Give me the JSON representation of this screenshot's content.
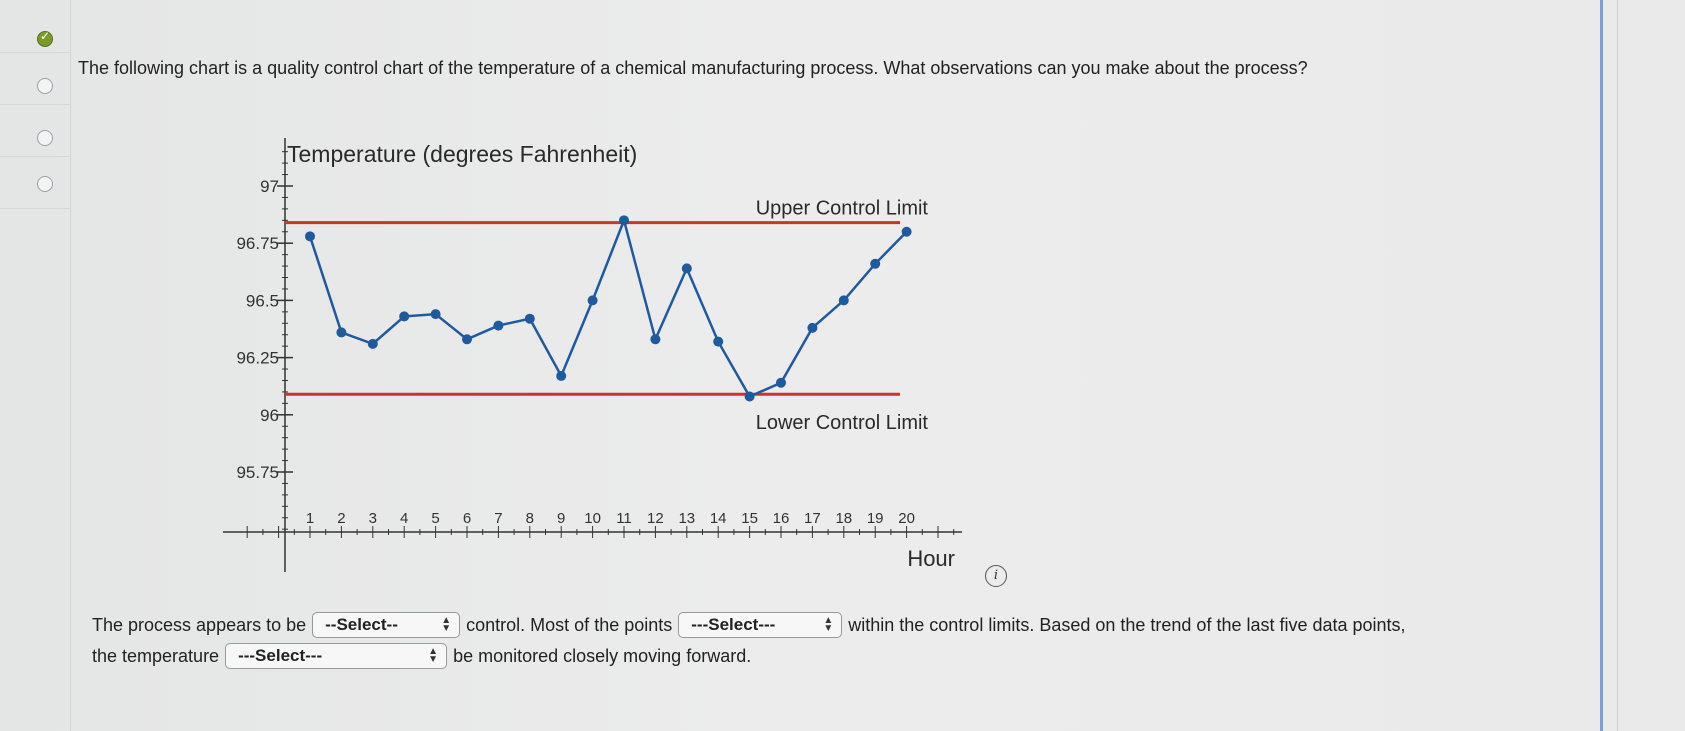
{
  "question": {
    "text": "The following chart is a quality control chart of the temperature of a chemical manufacturing process. What observations can you make about the process?"
  },
  "answer": {
    "line1_a": "The process appears to be",
    "select1": "--Select--",
    "line1_b": "control. Most of the points",
    "select2": "---Select---",
    "line1_c": "within the control limits. Based on the trend of the last five data points,",
    "line2_a": "the temperature",
    "select3": "---Select---",
    "line2_b": "be monitored closely moving forward."
  },
  "info_icon": "i",
  "colors": {
    "series": "#1f5a9e",
    "limits": "#c9342b",
    "radio_checked": "#7a9a2a"
  },
  "chart_data": {
    "type": "line",
    "ylabel": "Temperature (degrees Fahrenheit)",
    "xlabel": "Hour",
    "y_ticks": [
      "97",
      "96.75",
      "96.5",
      "96.25",
      "96",
      "95.75"
    ],
    "y_tick_values": [
      97,
      96.75,
      96.5,
      96.25,
      96,
      95.75
    ],
    "ylim": [
      95.75,
      97
    ],
    "x": [
      1,
      2,
      3,
      4,
      5,
      6,
      7,
      8,
      9,
      10,
      11,
      12,
      13,
      14,
      15,
      16,
      17,
      18,
      19,
      20
    ],
    "x_tick_labels": [
      "1",
      "2",
      "3",
      "4",
      "5",
      "6",
      "7",
      "8",
      "9",
      "10",
      "11",
      "12",
      "13",
      "14",
      "15",
      "16",
      "17",
      "18",
      "19",
      "20"
    ],
    "series": [
      {
        "values": [
          96.78,
          96.36,
          96.31,
          96.43,
          96.44,
          96.33,
          96.39,
          96.42,
          96.17,
          96.5,
          96.85,
          96.33,
          96.64,
          96.32,
          96.08,
          96.14,
          96.38,
          96.5,
          96.66,
          96.8
        ]
      }
    ],
    "upper_control_limit": {
      "label": "Upper   Control   Limit",
      "value": 96.84
    },
    "lower_control_limit": {
      "label": "Lower   Control   Limit",
      "value": 96.09
    },
    "grid": false
  }
}
